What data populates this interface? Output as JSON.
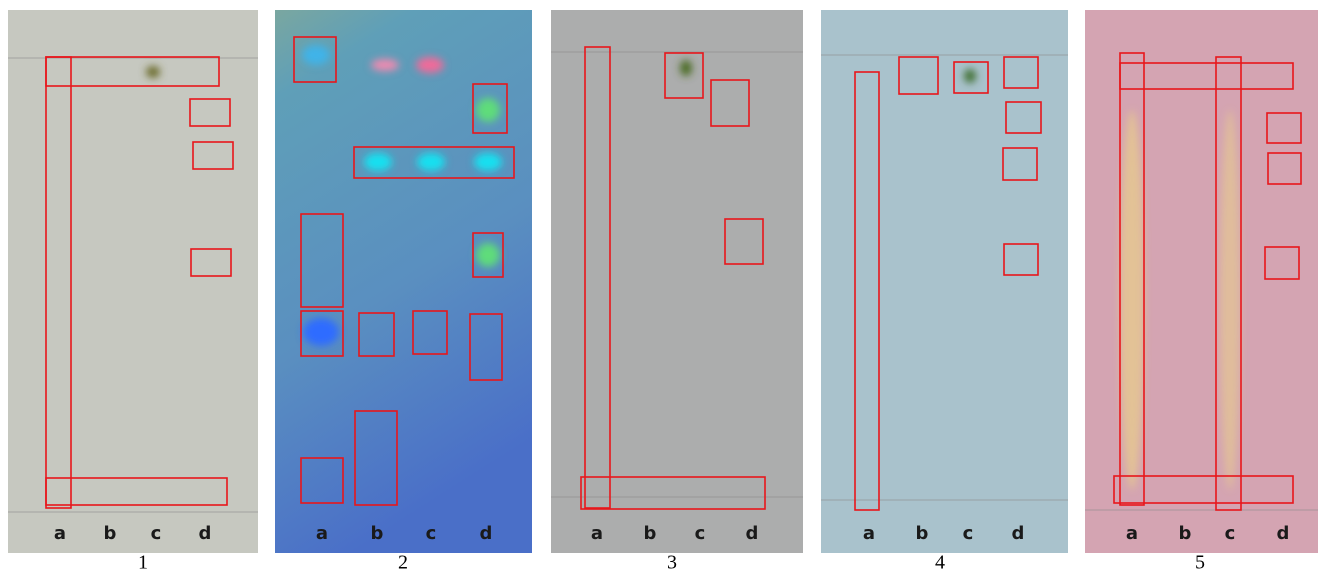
{
  "panels": [
    {
      "number": "1",
      "lanes": [
        "a",
        "b",
        "c",
        "d"
      ]
    },
    {
      "number": "2",
      "lanes": [
        "a",
        "b",
        "c",
        "d"
      ]
    },
    {
      "number": "3",
      "lanes": [
        "a",
        "b",
        "c",
        "d"
      ]
    },
    {
      "number": "4",
      "lanes": [
        "a",
        "b",
        "c",
        "d"
      ]
    },
    {
      "number": "5",
      "lanes": [
        "a",
        "b",
        "c",
        "d"
      ]
    }
  ]
}
